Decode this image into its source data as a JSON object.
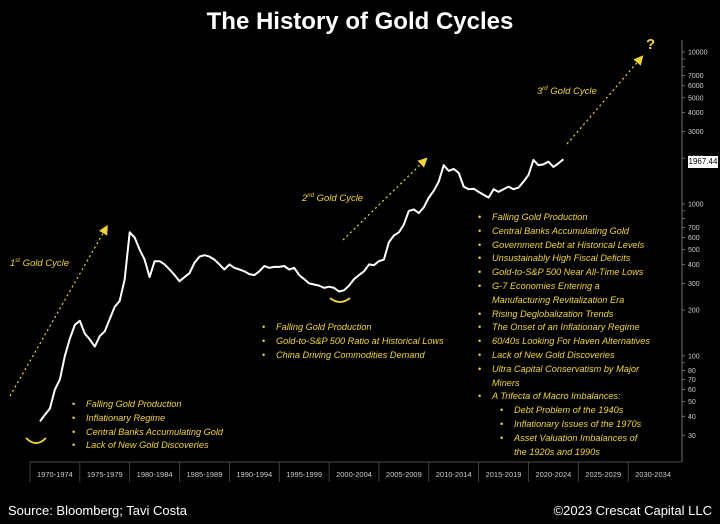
{
  "title": "The History of Gold Cycles",
  "footer": {
    "source": "Source: Bloomberg; Tavi Costa",
    "copyright": "©2023 Crescat Capital LLC"
  },
  "cycles": {
    "first": {
      "ordinal": "1",
      "suffix": "st",
      "text": " Gold Cycle"
    },
    "second": {
      "ordinal": "2",
      "suffix": "nd",
      "text": " Gold Cycle"
    },
    "third": {
      "ordinal": "3",
      "suffix": "rd",
      "text": " Gold Cycle"
    },
    "question": "?"
  },
  "bullets_1": [
    "Falling Gold Production",
    "Inflationary Regime",
    "Central Banks Accumulating Gold",
    "Lack of New Gold Discoveries"
  ],
  "bullets_2": [
    "Falling Gold Production",
    "Gold-to-S&P 500 Ratio at Historical Lows",
    "China Driving Commodities Demand"
  ],
  "bullets_3": [
    {
      "text": "Falling Gold Production",
      "kind": "item"
    },
    {
      "text": "Central Banks Accumulating Gold",
      "kind": "item"
    },
    {
      "text": "Government Debt at Historical Levels",
      "kind": "item"
    },
    {
      "text": "Unsustainably High Fiscal Deficits",
      "kind": "item"
    },
    {
      "text": "Gold-to-S&P 500 Near All-Time Lows",
      "kind": "item"
    },
    {
      "text": "G-7 Economies Entering a",
      "kind": "item"
    },
    {
      "text": "Manufacturing Revitalization Era",
      "kind": "cont"
    },
    {
      "text": "Rising Deglobalization Trends",
      "kind": "item"
    },
    {
      "text": "The Onset of an Inflationary Regime",
      "kind": "item"
    },
    {
      "text": "60/40s Looking For Haven Alternatives",
      "kind": "item"
    },
    {
      "text": "Lack of New Gold Discoveries",
      "kind": "item"
    },
    {
      "text": "Ultra Capital Conservatism by Major",
      "kind": "item"
    },
    {
      "text": "Miners",
      "kind": "cont"
    },
    {
      "text": "A Trifecta of Macro Imbalances:",
      "kind": "item"
    },
    {
      "text": "Debt Problem of the 1940s",
      "kind": "indent"
    },
    {
      "text": "Inflationary Issues of the 1970s",
      "kind": "indent"
    },
    {
      "text": "Asset Valuation Imbalances of",
      "kind": "indent"
    },
    {
      "text": "the 1920s and 1990s",
      "kind": "cont2"
    }
  ],
  "colors": {
    "background": "#000000",
    "line": "#ffffff",
    "annotation": "#f2d43a",
    "axis": "#aaaaaa"
  },
  "chart_data": {
    "type": "line",
    "title": "The History of Gold Cycles",
    "xlabel": "",
    "ylabel": "",
    "yscale": "log",
    "ylim": [
      20,
      12000
    ],
    "xlim": [
      1970,
      2035
    ],
    "x_tick_labels": [
      "1970-1974",
      "1975-1979",
      "1980-1984",
      "1985-1989",
      "1990-1994",
      "1995-1999",
      "2000-2004",
      "2005-2009",
      "2010-2014",
      "2015-2019",
      "2020-2024",
      "2025-2029",
      "2030-2034"
    ],
    "y_ticks": [
      30,
      40,
      50,
      60,
      70,
      80,
      90,
      100,
      200,
      300,
      400,
      500,
      600,
      700,
      800,
      900,
      1000,
      2000,
      3000,
      4000,
      5000,
      6000,
      7000,
      8000,
      9000,
      10000
    ],
    "y_tick_labels": {
      "30": "30",
      "40": "40",
      "50": "50",
      "60": "60",
      "70": "70",
      "80": "80",
      "100": "100",
      "200": "200",
      "300": "300",
      "400": "400",
      "500": "500",
      "600": "600",
      "700": "700",
      "1000": "1000",
      "2000": "2000",
      "3000": "3000",
      "4000": "4000",
      "5000": "5000",
      "6000": "6000",
      "7000": "7000",
      "10000": "10000"
    },
    "last_value_label": "1967.44",
    "series": [
      {
        "name": "Gold price (USD/oz)",
        "x": [
          1971.0,
          1971.5,
          1972.0,
          1972.5,
          1973.0,
          1973.5,
          1974.0,
          1974.5,
          1975.0,
          1975.5,
          1976.0,
          1976.5,
          1977.0,
          1977.5,
          1978.0,
          1978.5,
          1979.0,
          1979.5,
          1980.0,
          1980.5,
          1981.0,
          1981.5,
          1982.0,
          1982.5,
          1983.0,
          1983.5,
          1984.0,
          1984.5,
          1985.0,
          1985.5,
          1986.0,
          1986.5,
          1987.0,
          1987.5,
          1988.0,
          1988.5,
          1989.0,
          1989.5,
          1990.0,
          1990.5,
          1991.0,
          1991.5,
          1992.0,
          1992.5,
          1993.0,
          1993.5,
          1994.0,
          1994.5,
          1995.0,
          1995.5,
          1996.0,
          1996.5,
          1997.0,
          1997.5,
          1998.0,
          1998.5,
          1999.0,
          1999.5,
          2000.0,
          2000.5,
          2001.0,
          2001.5,
          2002.0,
          2002.5,
          2003.0,
          2003.5,
          2004.0,
          2004.5,
          2005.0,
          2005.5,
          2006.0,
          2006.5,
          2007.0,
          2007.5,
          2008.0,
          2008.5,
          2009.0,
          2009.5,
          2010.0,
          2010.5,
          2011.0,
          2011.5,
          2012.0,
          2012.5,
          2013.0,
          2013.5,
          2014.0,
          2014.5,
          2015.0,
          2015.5,
          2016.0,
          2016.5,
          2017.0,
          2017.5,
          2018.0,
          2018.5,
          2019.0,
          2019.5,
          2020.0,
          2020.5,
          2021.0,
          2021.5,
          2022.0,
          2022.5,
          2023.0,
          2023.5
        ],
        "values": [
          37,
          41,
          45,
          60,
          70,
          100,
          130,
          160,
          170,
          140,
          128,
          115,
          135,
          145,
          175,
          210,
          230,
          320,
          650,
          600,
          500,
          430,
          330,
          420,
          420,
          400,
          370,
          340,
          310,
          330,
          350,
          410,
          450,
          460,
          450,
          430,
          400,
          370,
          400,
          380,
          370,
          360,
          345,
          340,
          360,
          390,
          380,
          385,
          385,
          390,
          370,
          380,
          340,
          320,
          300,
          295,
          290,
          280,
          285,
          280,
          265,
          270,
          290,
          320,
          340,
          360,
          400,
          395,
          420,
          430,
          560,
          620,
          650,
          730,
          900,
          920,
          870,
          950,
          1100,
          1220,
          1400,
          1800,
          1650,
          1700,
          1600,
          1300,
          1250,
          1260,
          1200,
          1150,
          1100,
          1250,
          1200,
          1250,
          1300,
          1250,
          1280,
          1400,
          1550,
          1950,
          1800,
          1820,
          1900,
          1750,
          1850,
          1967.44
        ]
      }
    ],
    "annotations": [
      {
        "text": "1st Gold Cycle"
      },
      {
        "text": "2nd Gold Cycle"
      },
      {
        "text": "3rd Gold Cycle"
      },
      {
        "text": "?"
      }
    ]
  }
}
